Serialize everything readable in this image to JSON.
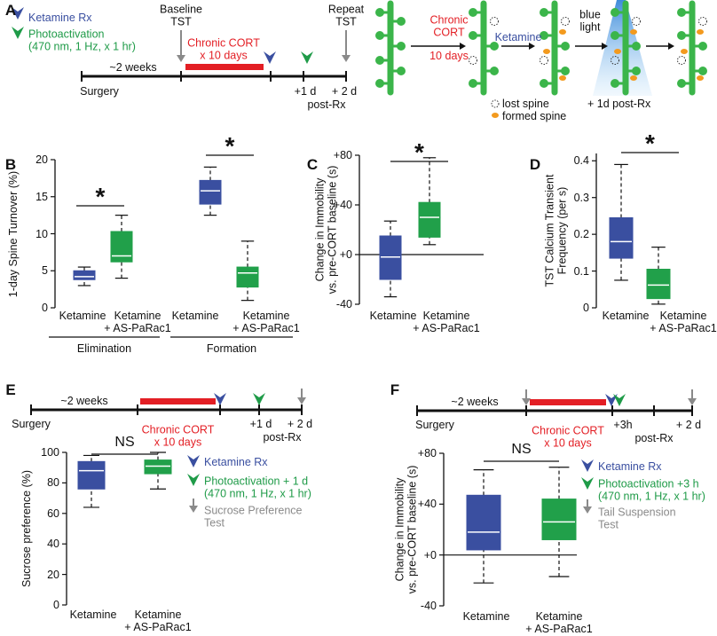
{
  "timeline_a": {
    "panel": "A",
    "legend": [
      {
        "text": "Ketamine Rx",
        "color": "#3a4fa0"
      },
      {
        "text": "Photoactivation\n(470 nm, 1 Hz, x 1 hr)",
        "color": "#1f9b48"
      }
    ],
    "baseline": "Baseline\nTST",
    "repeat": "Repeat\nTST",
    "duration": "~2 weeks",
    "surgery": "Surgery",
    "cort": "Chronic CORT\nx 10 days",
    "day1": "+1 d",
    "day2": "+ 2 d",
    "post": "post-Rx"
  },
  "diagram": {
    "cort": "Chronic\nCORT",
    "days": "10 days",
    "ketamine": "Ketamine",
    "light": "blue\nlight",
    "lost": "lost spine",
    "formed": "formed spine",
    "post": "+ 1d post-Rx"
  },
  "timeline_e": {
    "duration": "~2 weeks",
    "surgery": "Surgery",
    "cort": "Chronic CORT\nx 10 days",
    "day1": "+1 d",
    "day2": "+ 2 d",
    "post": "post-Rx"
  },
  "timeline_f": {
    "duration": "~2 weeks",
    "surgery": "Surgery",
    "cort": "Chronic CORT\nx 10 days",
    "day1": "+3h",
    "day2": "+ 2 d",
    "post": "post-Rx"
  },
  "chart_data": [
    {
      "type": "box",
      "panel": "B",
      "ylabel": "1-day Spine Turnover (%)",
      "ylim": [
        0,
        20
      ],
      "yticks": [
        0,
        5,
        10,
        15,
        20
      ],
      "categories": [
        "Ketamine",
        "Ketamine\n+ AS-PaRac1",
        "Ketamine",
        "Ketamine\n+ AS-PaRac1"
      ],
      "groups": [
        "Elimination",
        "Formation"
      ],
      "annotations": [
        "*",
        "*"
      ],
      "boxes": [
        {
          "color": "#3a4fa0",
          "min": 3,
          "q1": 3.8,
          "median": 4.2,
          "q3": 5,
          "max": 5.5
        },
        {
          "color": "#21a04a",
          "min": 4,
          "q1": 6.2,
          "median": 7,
          "q3": 10.3,
          "max": 12.5
        },
        {
          "color": "#3a4fa0",
          "min": 12.5,
          "q1": 14,
          "median": 15.8,
          "q3": 17.2,
          "max": 19
        },
        {
          "color": "#21a04a",
          "min": 1,
          "q1": 2.8,
          "median": 4.7,
          "q3": 5.5,
          "max": 9
        }
      ]
    },
    {
      "type": "box",
      "panel": "C",
      "ylabel": "Change in Immobility\nvs. pre-CORT baseline (s)",
      "ylim": [
        -40,
        80
      ],
      "yticks": [
        -40,
        {
          "value": 0,
          "label": "+0"
        },
        {
          "value": 40,
          "label": "+40"
        },
        {
          "value": 80,
          "label": "+80"
        }
      ],
      "zero_line": true,
      "categories": [
        "Ketamine",
        "Ketamine\n+ AS-PaRac1"
      ],
      "annotations": [
        "*"
      ],
      "boxes": [
        {
          "color": "#3a4fa0",
          "min": -34,
          "q1": -20,
          "median": -2,
          "q3": 15,
          "max": 27
        },
        {
          "color": "#21a04a",
          "min": 8,
          "q1": 14,
          "median": 30,
          "q3": 42,
          "max": 78
        }
      ]
    },
    {
      "type": "box",
      "panel": "D",
      "ylabel": "TST Calcium Transient\nFrequency (per s)",
      "ylim": [
        0,
        0.42
      ],
      "yticks": [
        0,
        0.1,
        0.2,
        0.3,
        0.4
      ],
      "categories": [
        "Ketamine",
        "Ketamine\n+ AS-PaRac1"
      ],
      "annotations": [
        "*"
      ],
      "boxes": [
        {
          "color": "#3a4fa0",
          "min": 0.075,
          "q1": 0.135,
          "median": 0.18,
          "q3": 0.245,
          "max": 0.39
        },
        {
          "color": "#21a04a",
          "min": 0.01,
          "q1": 0.025,
          "median": 0.062,
          "q3": 0.105,
          "max": 0.165
        }
      ]
    },
    {
      "type": "box",
      "panel": "E",
      "ylabel": "Sucrose preference (%)",
      "ylim": [
        0,
        100
      ],
      "yticks": [
        0,
        20,
        40,
        60,
        80,
        100
      ],
      "categories": [
        "Ketamine",
        "Ketamine\n+ AS-PaRac1"
      ],
      "annotations": [
        "NS"
      ],
      "legend": [
        {
          "text": "Ketamine Rx",
          "color": "#3a4fa0"
        },
        {
          "text": "Photoactivation + 1 d\n(470 nm, 1 Hz, x 1 hr)",
          "color": "#1f9b48"
        },
        {
          "text": "Sucrose Preference\nTest",
          "color": "#8a8a8a"
        }
      ],
      "boxes": [
        {
          "color": "#3a4fa0",
          "min": 64,
          "q1": 76,
          "median": 88,
          "q3": 94,
          "max": 98
        },
        {
          "color": "#21a04a",
          "min": 76,
          "q1": 86,
          "median": 91,
          "q3": 95,
          "max": 100
        }
      ]
    },
    {
      "type": "box",
      "panel": "F",
      "ylabel": "Change in Immobility\nvs. pre-CORT baseline (s)",
      "ylim": [
        -40,
        80
      ],
      "yticks": [
        -40,
        {
          "value": 0,
          "label": "+0"
        },
        {
          "value": 40,
          "label": "+40"
        },
        {
          "value": 80,
          "label": "+80"
        }
      ],
      "zero_line": true,
      "categories": [
        "Ketamine",
        "Ketamine\n+ AS-PaRac1"
      ],
      "annotations": [
        "NS"
      ],
      "legend": [
        {
          "text": "Ketamine Rx",
          "color": "#3a4fa0"
        },
        {
          "text": "Photoactivation +3 h\n(470 nm, 1 Hz, x 1 hr)",
          "color": "#1f9b48"
        },
        {
          "text": "Tail Suspension\nTest",
          "color": "#8a8a8a"
        }
      ],
      "boxes": [
        {
          "color": "#3a4fa0",
          "min": -22,
          "q1": 4,
          "median": 18,
          "q3": 47,
          "max": 67
        },
        {
          "color": "#21a04a",
          "min": -17,
          "q1": 12,
          "median": 26,
          "q3": 44,
          "max": 69
        }
      ]
    }
  ]
}
